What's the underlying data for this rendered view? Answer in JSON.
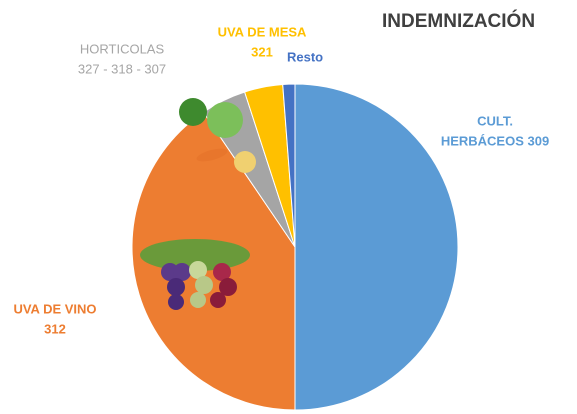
{
  "chart_data": {
    "type": "pie",
    "title": "INDEMNIZACIÓN",
    "categories": [
      [
        "CULT.",
        "HERBÁCEOS 309"
      ],
      [
        "UVA DE VINO",
        "312"
      ],
      [
        "HORTICOLAS",
        "327 - 318 - 307"
      ],
      [
        "UVA DE MESA",
        "321"
      ],
      [
        "Resto"
      ]
    ],
    "values": [
      50,
      40.5,
      4.5,
      3.8,
      1.2
    ],
    "colors": [
      "#5b9bd5",
      "#ed7d31",
      "#a5a5a5",
      "#ffc000",
      "#4472c4"
    ]
  }
}
